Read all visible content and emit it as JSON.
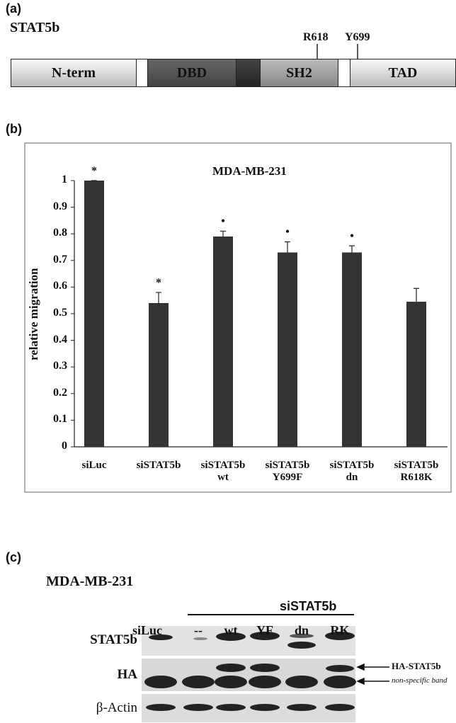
{
  "panel_a": {
    "label": "(a)",
    "protein": "STAT5b",
    "domains": [
      "N-term",
      "DBD",
      "SH2",
      "TAD"
    ],
    "sites": [
      "R618",
      "Y699"
    ]
  },
  "chart_data": {
    "type": "bar",
    "panel_label": "(b)",
    "title": "MDA-MB-231",
    "y_label": "relative migration",
    "categories": [
      "siLuc",
      "siSTAT5b",
      "siSTAT5b\nwt",
      "siSTAT5b\nY699F",
      "siSTAT5b\ndn",
      "siSTAT5b\nR618K"
    ],
    "values": [
      1,
      0.54,
      0.79,
      0.73,
      0.73,
      0.545
    ],
    "errors": [
      0,
      0.04,
      0.02,
      0.04,
      0.025,
      0.05
    ],
    "markers": [
      "*",
      "*",
      "•",
      "•",
      "•",
      null
    ],
    "color": "#333333",
    "ylim": [
      0,
      1
    ],
    "yticks": [
      0,
      0.1,
      0.2,
      0.3,
      0.4,
      0.5,
      0.6,
      0.7,
      0.8,
      0.9,
      1
    ]
  },
  "panel_c": {
    "label": "(c)",
    "title": "MDA-MB-231",
    "group_label": "siSTAT5b",
    "lanes": [
      "siLuc",
      "--",
      "wt",
      "YF",
      "dn",
      "RK"
    ],
    "rows": [
      "STAT5b",
      "HA",
      "β-Actin"
    ],
    "annotations": [
      "HA-STAT5b",
      "non-specific band"
    ]
  }
}
